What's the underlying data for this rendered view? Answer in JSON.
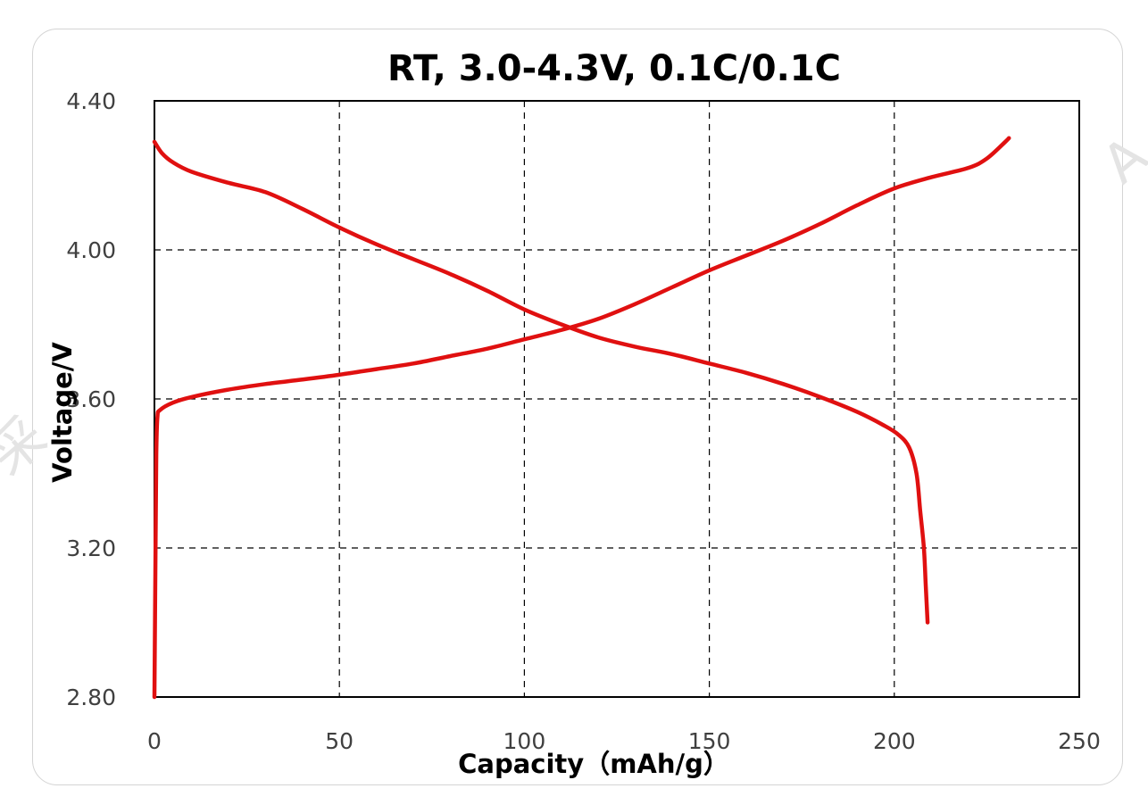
{
  "chart_data": {
    "type": "line",
    "title": "RT, 3.0-4.3V, 0.1C/0.1C",
    "xlabel": "Capacity（mAh/g）",
    "ylabel": "Voltage/V",
    "xlim": [
      0,
      250
    ],
    "ylim": [
      2.8,
      4.4
    ],
    "x_ticks": [
      "0",
      "50",
      "100",
      "150",
      "200",
      "250"
    ],
    "y_ticks": [
      "2.80",
      "3.20",
      "3.60",
      "4.00",
      "4.40"
    ],
    "grid": true,
    "grid_style": "dashed",
    "legend": "none",
    "line_color": "#e01010",
    "series": [
      {
        "points": [
          [
            0,
            2.8
          ],
          [
            0.3,
            3.2
          ],
          [
            0.5,
            3.45
          ],
          [
            0.8,
            3.55
          ],
          [
            1.5,
            3.57
          ],
          [
            5,
            3.59
          ],
          [
            10,
            3.605
          ],
          [
            20,
            3.625
          ],
          [
            30,
            3.64
          ],
          [
            40,
            3.652
          ],
          [
            50,
            3.665
          ],
          [
            60,
            3.68
          ],
          [
            70,
            3.695
          ],
          [
            80,
            3.715
          ],
          [
            90,
            3.735
          ],
          [
            100,
            3.76
          ],
          [
            110,
            3.785
          ],
          [
            120,
            3.815
          ],
          [
            130,
            3.855
          ],
          [
            140,
            3.9
          ],
          [
            150,
            3.945
          ],
          [
            160,
            3.985
          ],
          [
            170,
            4.025
          ],
          [
            180,
            4.07
          ],
          [
            190,
            4.12
          ],
          [
            200,
            4.165
          ],
          [
            210,
            4.195
          ],
          [
            220,
            4.22
          ],
          [
            225,
            4.245
          ],
          [
            230,
            4.29
          ],
          [
            231,
            4.3
          ]
        ]
      },
      {
        "points": [
          [
            0,
            4.29
          ],
          [
            2,
            4.26
          ],
          [
            5,
            4.235
          ],
          [
            10,
            4.21
          ],
          [
            20,
            4.18
          ],
          [
            30,
            4.155
          ],
          [
            40,
            4.11
          ],
          [
            50,
            4.06
          ],
          [
            60,
            4.015
          ],
          [
            70,
            3.975
          ],
          [
            80,
            3.935
          ],
          [
            90,
            3.89
          ],
          [
            100,
            3.84
          ],
          [
            110,
            3.8
          ],
          [
            120,
            3.765
          ],
          [
            130,
            3.74
          ],
          [
            140,
            3.72
          ],
          [
            150,
            3.695
          ],
          [
            160,
            3.67
          ],
          [
            170,
            3.64
          ],
          [
            180,
            3.605
          ],
          [
            190,
            3.565
          ],
          [
            197,
            3.53
          ],
          [
            201,
            3.505
          ],
          [
            204,
            3.47
          ],
          [
            206,
            3.4
          ],
          [
            207,
            3.3
          ],
          [
            208,
            3.2
          ],
          [
            208.5,
            3.1
          ],
          [
            209,
            3.0
          ]
        ]
      }
    ]
  }
}
